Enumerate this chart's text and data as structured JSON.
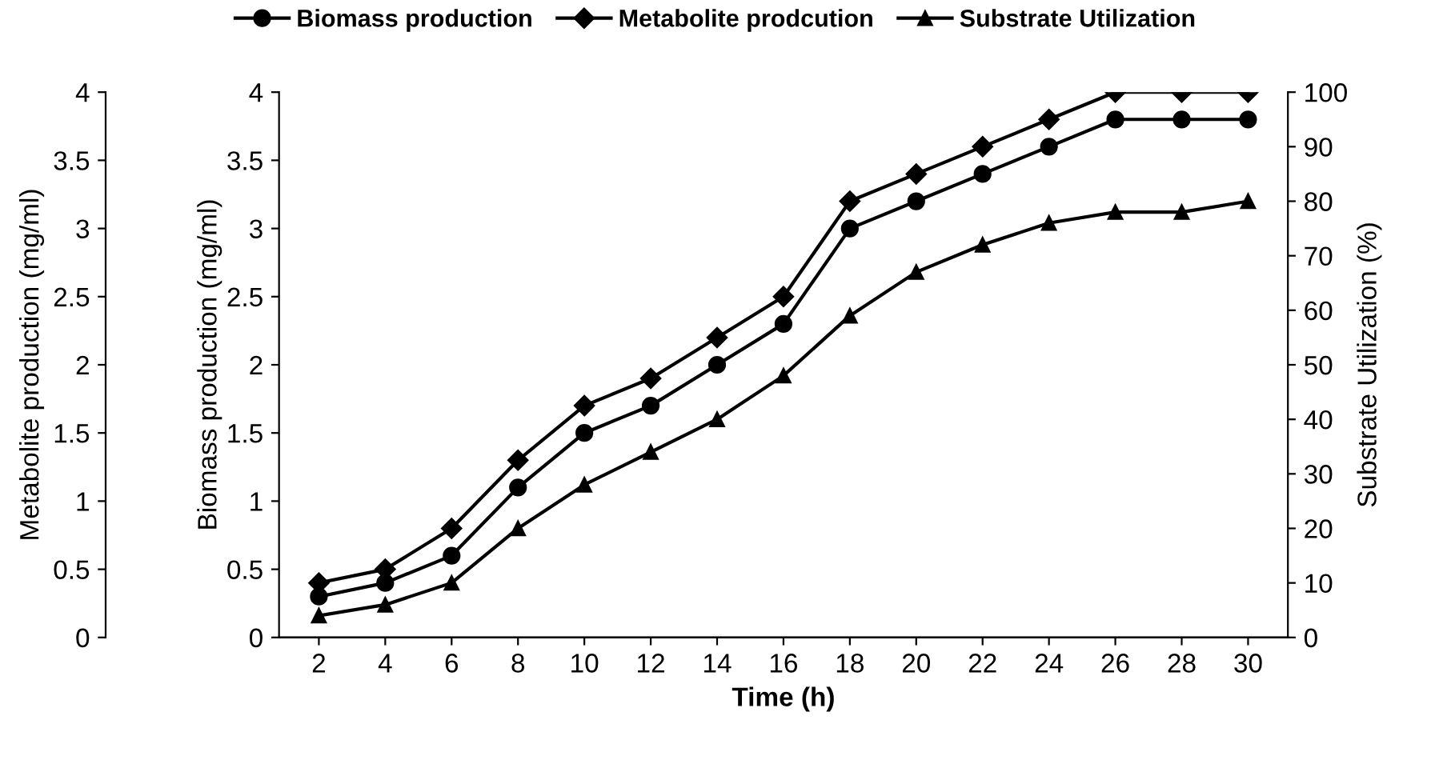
{
  "chart_data": {
    "type": "line",
    "xlabel": "Time (h)",
    "ylabel": "Metabolite production (mg/ml)",
    "y3label": "Biomass production (mg/ml)",
    "y2label": "Substrate Utilization (%)",
    "categories": [
      "2",
      "4",
      "6",
      "8",
      "10",
      "12",
      "14",
      "16",
      "18",
      "20",
      "22",
      "24",
      "26",
      "28",
      "30"
    ],
    "series": [
      {
        "name": "Biomass production",
        "color": "#000000",
        "marker": "circle",
        "axis": "y3",
        "values": [
          0.3,
          0.4,
          0.6,
          1.1,
          1.5,
          1.7,
          2.0,
          2.3,
          3.0,
          3.2,
          3.4,
          3.6,
          3.8,
          3.8,
          3.8
        ]
      },
      {
        "name": "Metabolite prodcution",
        "color": "#000000",
        "marker": "diamond",
        "axis": "y",
        "values": [
          0.4,
          0.5,
          0.8,
          1.3,
          1.7,
          1.9,
          2.2,
          2.5,
          3.2,
          3.4,
          3.6,
          3.8,
          4.0,
          4.0,
          4.0
        ]
      },
      {
        "name": "Substrate Utilization",
        "color": "#000000",
        "marker": "triangle",
        "axis": "y2",
        "values": [
          4,
          6,
          10,
          20,
          28,
          34,
          40,
          48,
          59,
          67,
          72,
          76,
          78,
          78,
          80
        ]
      }
    ],
    "ylim": [
      0,
      4
    ],
    "yticks": [
      0,
      0.5,
      1,
      1.5,
      2,
      2.5,
      3,
      3.5,
      4
    ],
    "y3lim": [
      0,
      4
    ],
    "y3ticks": [
      0,
      0.5,
      1,
      1.5,
      2,
      2.5,
      3,
      3.5,
      4
    ],
    "y2lim": [
      0,
      100
    ],
    "y2ticks": [
      0,
      10,
      20,
      30,
      40,
      50,
      60,
      70,
      80,
      90,
      100
    ],
    "legend": "top",
    "grid": false,
    "line_style": "solid"
  }
}
